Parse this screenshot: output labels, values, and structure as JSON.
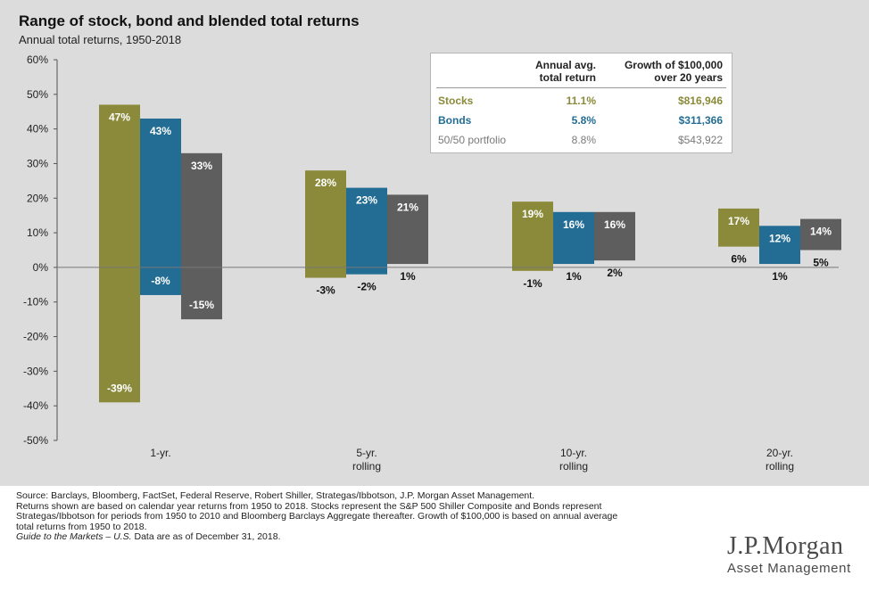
{
  "title": "Range of stock, bond and blended total returns",
  "subtitle": "Annual total returns, 1950-2018",
  "colors": {
    "stocks": "#8a8a3a",
    "bonds": "#236d94",
    "portfolio": "#5e5e5e",
    "panel": "#dcdcdc"
  },
  "legend": {
    "headers": {
      "annual": [
        "Annual avg.",
        "total return"
      ],
      "growth": [
        "Growth of $100,000",
        "over 20 years"
      ]
    },
    "rows": [
      {
        "name": "Stocks",
        "annual": "11.1%",
        "growth": "$816,946",
        "color": "#8a8a3a",
        "bold": true
      },
      {
        "name": "Bonds",
        "annual": "5.8%",
        "growth": "$311,366",
        "color": "#236d94",
        "bold": true
      },
      {
        "name": "50/50 portfolio",
        "annual": "8.8%",
        "growth": "$543,922",
        "color": "#7a7a7a",
        "bold": false
      }
    ]
  },
  "chart_data": {
    "type": "bar",
    "subtype": "floating-range",
    "categories": [
      [
        "1-yr."
      ],
      [
        "5-yr.",
        "rolling"
      ],
      [
        "10-yr.",
        "rolling"
      ],
      [
        "20-yr.",
        "rolling"
      ]
    ],
    "ylim": [
      -50,
      60
    ],
    "yticks": [
      60,
      50,
      40,
      30,
      20,
      10,
      0,
      -10,
      -20,
      -30,
      -40,
      -50
    ],
    "series": [
      {
        "name": "Stocks",
        "color": "#8a8a3a",
        "max": [
          47,
          28,
          19,
          17
        ],
        "min": [
          -39,
          -3,
          -1,
          6
        ],
        "max_labels": [
          "47%",
          "28%",
          "19%",
          "17%"
        ],
        "min_labels": [
          "-39%",
          "-3%",
          "-1%",
          "6%"
        ]
      },
      {
        "name": "Bonds",
        "color": "#236d94",
        "max": [
          43,
          23,
          16,
          12
        ],
        "min": [
          -8,
          -2,
          1,
          1
        ],
        "max_labels": [
          "43%",
          "23%",
          "16%",
          "12%"
        ],
        "min_labels": [
          "-8%",
          "-2%",
          "1%",
          "1%"
        ]
      },
      {
        "name": "50/50 portfolio",
        "color": "#5e5e5e",
        "max": [
          33,
          21,
          16,
          14
        ],
        "min": [
          -15,
          1,
          2,
          5
        ],
        "max_labels": [
          "33%",
          "21%",
          "16%",
          "14%"
        ],
        "min_labels": [
          "-15%",
          "1%",
          "2%",
          "5%"
        ]
      }
    ]
  },
  "footer": {
    "source": "Source: Barclays, Bloomberg, FactSet, Federal Reserve, Robert Shiller, Strategas/Ibbotson, J.P. Morgan Asset Management.",
    "note1": "Returns shown are based on calendar year returns from 1950 to 2018. Stocks represent the S&P 500 Shiller Composite and Bonds represent",
    "note2": "Strategas/Ibbotson for periods from 1950 to 2010 and Bloomberg Barclays Aggregate thereafter. Growth of $100,000 is based on annual average",
    "note3": "total returns from 1950 to 2018.",
    "guide_italic": "Guide to the Markets – U.S.",
    "guide_rest": " Data are as of December 31, 2018."
  },
  "logo": {
    "main": "J.P.Morgan",
    "sub": "Asset Management"
  }
}
